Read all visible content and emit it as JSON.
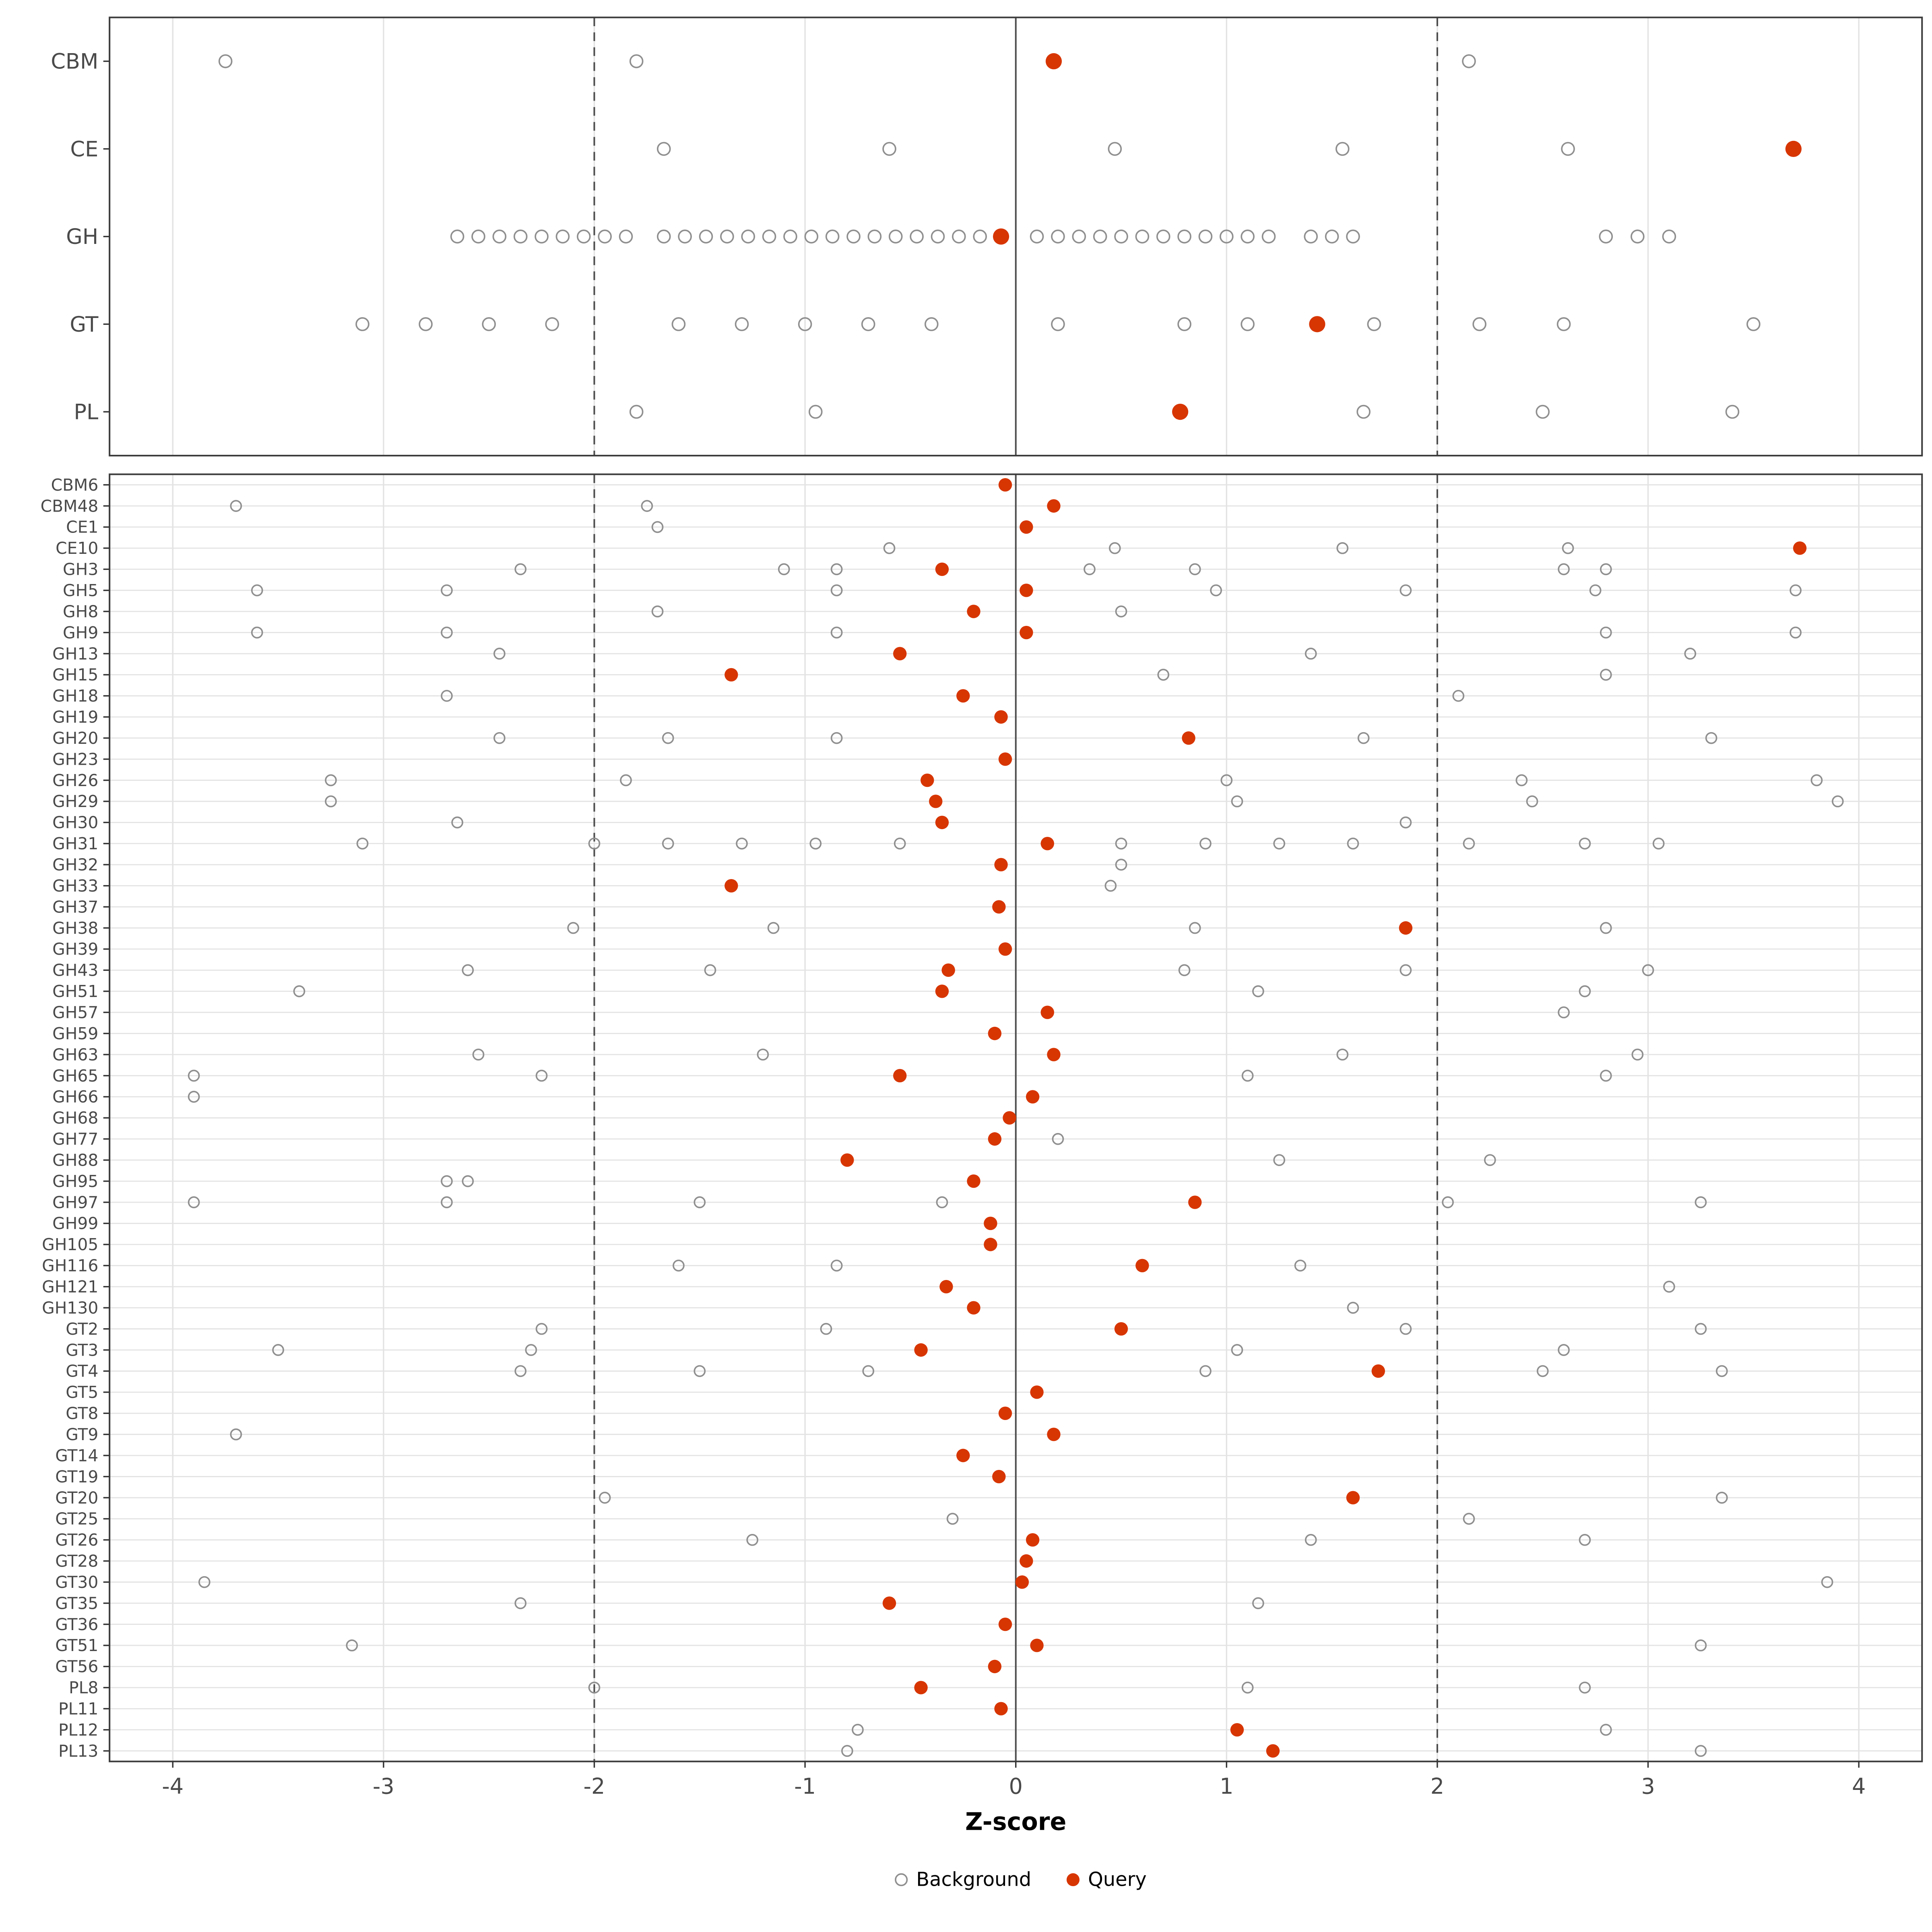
{
  "chart_data": {
    "type": "scatter",
    "title": "",
    "xlabel": "Z-score",
    "xlim": [
      -4.3,
      4.3
    ],
    "xticks": [
      -4,
      -3,
      -2,
      -1,
      0,
      1,
      2,
      3,
      4
    ],
    "reference_lines": {
      "solid": [
        0
      ],
      "dashed": [
        -2,
        2
      ]
    },
    "legend": [
      {
        "label": "Background",
        "style": "open-circle"
      },
      {
        "label": "Query",
        "style": "filled-circle"
      }
    ],
    "colors": {
      "query": "#D73502",
      "background_stroke": "#8F8F8F",
      "grid": "#E3E3E3",
      "border": "#3C3C3C",
      "refline": "#4D4D4D",
      "axis_text": "#4A4A4A"
    },
    "panels": [
      {
        "name": "categories",
        "rows": [
          {
            "label": "CBM",
            "background": [
              -3.75,
              -1.8,
              2.15
            ],
            "query": 0.18
          },
          {
            "label": "CE",
            "background": [
              -1.67,
              -0.6,
              0.47,
              1.55,
              2.62
            ],
            "query": 3.69
          },
          {
            "label": "GH",
            "background": [
              -2.65,
              -2.55,
              -2.45,
              -2.35,
              -2.25,
              -2.15,
              -2.05,
              -1.95,
              -1.85,
              -1.67,
              -1.57,
              -1.47,
              -1.37,
              -1.27,
              -1.17,
              -1.07,
              -0.97,
              -0.87,
              -0.77,
              -0.67,
              -0.57,
              -0.47,
              -0.37,
              -0.27,
              -0.17,
              0.1,
              0.2,
              0.3,
              0.4,
              0.5,
              0.6,
              0.7,
              0.8,
              0.9,
              1.0,
              1.1,
              1.2,
              1.4,
              1.5,
              1.6,
              2.8,
              2.95,
              3.1
            ],
            "query": -0.07
          },
          {
            "label": "GT",
            "background": [
              -3.1,
              -2.8,
              -2.5,
              -2.2,
              -1.6,
              -1.3,
              -1.0,
              -0.7,
              -0.4,
              0.2,
              0.8,
              1.1,
              1.7,
              2.2,
              2.6,
              3.5
            ],
            "query": 1.43
          },
          {
            "label": "PL",
            "background": [
              -1.8,
              -0.95,
              1.65,
              2.5,
              3.4
            ],
            "query": 0.78
          }
        ]
      },
      {
        "name": "families",
        "rows": [
          {
            "label": "CBM6",
            "background": [],
            "query": -0.05
          },
          {
            "label": "CBM48",
            "background": [
              -3.7,
              -1.75
            ],
            "query": 0.18
          },
          {
            "label": "CE1",
            "background": [
              -1.7
            ],
            "query": 0.05
          },
          {
            "label": "CE10",
            "background": [
              -0.6,
              0.47,
              1.55,
              2.62
            ],
            "query": 3.72
          },
          {
            "label": "GH3",
            "background": [
              -2.35,
              -1.1,
              -0.85,
              0.35,
              0.85,
              2.6,
              2.8
            ],
            "query": -0.35
          },
          {
            "label": "GH5",
            "background": [
              -3.6,
              -2.7,
              -0.85,
              0.95,
              1.85,
              2.75,
              3.7
            ],
            "query": 0.05
          },
          {
            "label": "GH8",
            "background": [
              -1.7,
              0.5
            ],
            "query": -0.2
          },
          {
            "label": "GH9",
            "background": [
              -3.6,
              -2.7,
              -0.85,
              2.8,
              3.7
            ],
            "query": 0.05
          },
          {
            "label": "GH13",
            "background": [
              -2.45,
              1.4,
              3.2
            ],
            "query": -0.55
          },
          {
            "label": "GH15",
            "background": [
              0.7,
              2.8
            ],
            "query": -1.35
          },
          {
            "label": "GH18",
            "background": [
              -2.7,
              2.1
            ],
            "query": -0.25
          },
          {
            "label": "GH19",
            "background": [],
            "query": -0.07
          },
          {
            "label": "GH20",
            "background": [
              -2.45,
              -1.65,
              -0.85,
              1.65,
              3.3
            ],
            "query": 0.82
          },
          {
            "label": "GH23",
            "background": [],
            "query": -0.05
          },
          {
            "label": "GH26",
            "background": [
              -3.25,
              -1.85,
              1.0,
              2.4,
              3.8
            ],
            "query": -0.42
          },
          {
            "label": "GH29",
            "background": [
              -3.25,
              1.05,
              2.45,
              3.9
            ],
            "query": -0.38
          },
          {
            "label": "GH30",
            "background": [
              -2.65,
              1.85
            ],
            "query": -0.35
          },
          {
            "label": "GH31",
            "background": [
              -3.1,
              -2.0,
              -1.65,
              -1.3,
              -0.95,
              -0.55,
              0.5,
              0.9,
              1.25,
              1.6,
              2.15,
              2.7,
              3.05
            ],
            "query": 0.15
          },
          {
            "label": "GH32",
            "background": [
              0.5
            ],
            "query": -0.07
          },
          {
            "label": "GH33",
            "background": [
              0.45
            ],
            "query": -1.35
          },
          {
            "label": "GH37",
            "background": [],
            "query": -0.08
          },
          {
            "label": "GH38",
            "background": [
              -2.1,
              -1.15,
              0.85,
              2.8
            ],
            "query": 1.85
          },
          {
            "label": "GH39",
            "background": [],
            "query": -0.05
          },
          {
            "label": "GH43",
            "background": [
              -2.6,
              -1.45,
              0.8,
              1.85,
              3.0
            ],
            "query": -0.32
          },
          {
            "label": "GH51",
            "background": [
              -3.4,
              1.15,
              2.7
            ],
            "query": -0.35
          },
          {
            "label": "GH57",
            "background": [
              2.6
            ],
            "query": 0.15
          },
          {
            "label": "GH59",
            "background": [],
            "query": -0.1
          },
          {
            "label": "GH63",
            "background": [
              -2.55,
              -1.2,
              1.55,
              2.95
            ],
            "query": 0.18
          },
          {
            "label": "GH65",
            "background": [
              -3.9,
              -2.25,
              1.1,
              2.8
            ],
            "query": -0.55
          },
          {
            "label": "GH66",
            "background": [
              -3.9
            ],
            "query": 0.08
          },
          {
            "label": "GH68",
            "background": [],
            "query": -0.03
          },
          {
            "label": "GH77",
            "background": [
              0.2
            ],
            "query": -0.1
          },
          {
            "label": "GH88",
            "background": [
              1.25,
              2.25
            ],
            "query": -0.8
          },
          {
            "label": "GH95",
            "background": [
              -2.7,
              -2.6
            ],
            "query": -0.2
          },
          {
            "label": "GH97",
            "background": [
              -3.9,
              -2.7,
              -1.5,
              -0.35,
              2.05,
              3.25
            ],
            "query": 0.85
          },
          {
            "label": "GH99",
            "background": [],
            "query": -0.12
          },
          {
            "label": "GH105",
            "background": [],
            "query": -0.12
          },
          {
            "label": "GH116",
            "background": [
              -1.6,
              -0.85,
              1.35
            ],
            "query": 0.6
          },
          {
            "label": "GH121",
            "background": [
              3.1
            ],
            "query": -0.33
          },
          {
            "label": "GH130",
            "background": [
              1.6
            ],
            "query": -0.2
          },
          {
            "label": "GT2",
            "background": [
              -2.25,
              -0.9,
              1.85,
              3.25
            ],
            "query": 0.5
          },
          {
            "label": "GT3",
            "background": [
              -3.5,
              -2.3,
              1.05,
              2.6
            ],
            "query": -0.45
          },
          {
            "label": "GT4",
            "background": [
              -2.35,
              -1.5,
              -0.7,
              0.9,
              2.5,
              3.35
            ],
            "query": 1.72
          },
          {
            "label": "GT5",
            "background": [],
            "query": 0.1
          },
          {
            "label": "GT8",
            "background": [],
            "query": -0.05
          },
          {
            "label": "GT9",
            "background": [
              -3.7
            ],
            "query": 0.18
          },
          {
            "label": "GT14",
            "background": [],
            "query": -0.25
          },
          {
            "label": "GT19",
            "background": [],
            "query": -0.08
          },
          {
            "label": "GT20",
            "background": [
              -1.95,
              3.35
            ],
            "query": 1.6
          },
          {
            "label": "GT25",
            "background": [
              -0.3,
              2.15
            ],
            "query": null
          },
          {
            "label": "GT26",
            "background": [
              -1.25,
              1.4,
              2.7
            ],
            "query": 0.08
          },
          {
            "label": "GT28",
            "background": [],
            "query": 0.05
          },
          {
            "label": "GT30",
            "background": [
              -3.85,
              3.85
            ],
            "query": 0.03
          },
          {
            "label": "GT35",
            "background": [
              -2.35,
              1.15
            ],
            "query": -0.6
          },
          {
            "label": "GT36",
            "background": [],
            "query": -0.05
          },
          {
            "label": "GT51",
            "background": [
              -3.15,
              3.25
            ],
            "query": 0.1
          },
          {
            "label": "GT56",
            "background": [],
            "query": -0.1
          },
          {
            "label": "PL8",
            "background": [
              -2.0,
              1.1,
              2.7
            ],
            "query": -0.45
          },
          {
            "label": "PL11",
            "background": [],
            "query": -0.07
          },
          {
            "label": "PL12",
            "background": [
              -0.75,
              2.8
            ],
            "query": 1.05
          },
          {
            "label": "PL13",
            "background": [
              -0.8,
              3.25
            ],
            "query": 1.22
          }
        ]
      }
    ]
  }
}
